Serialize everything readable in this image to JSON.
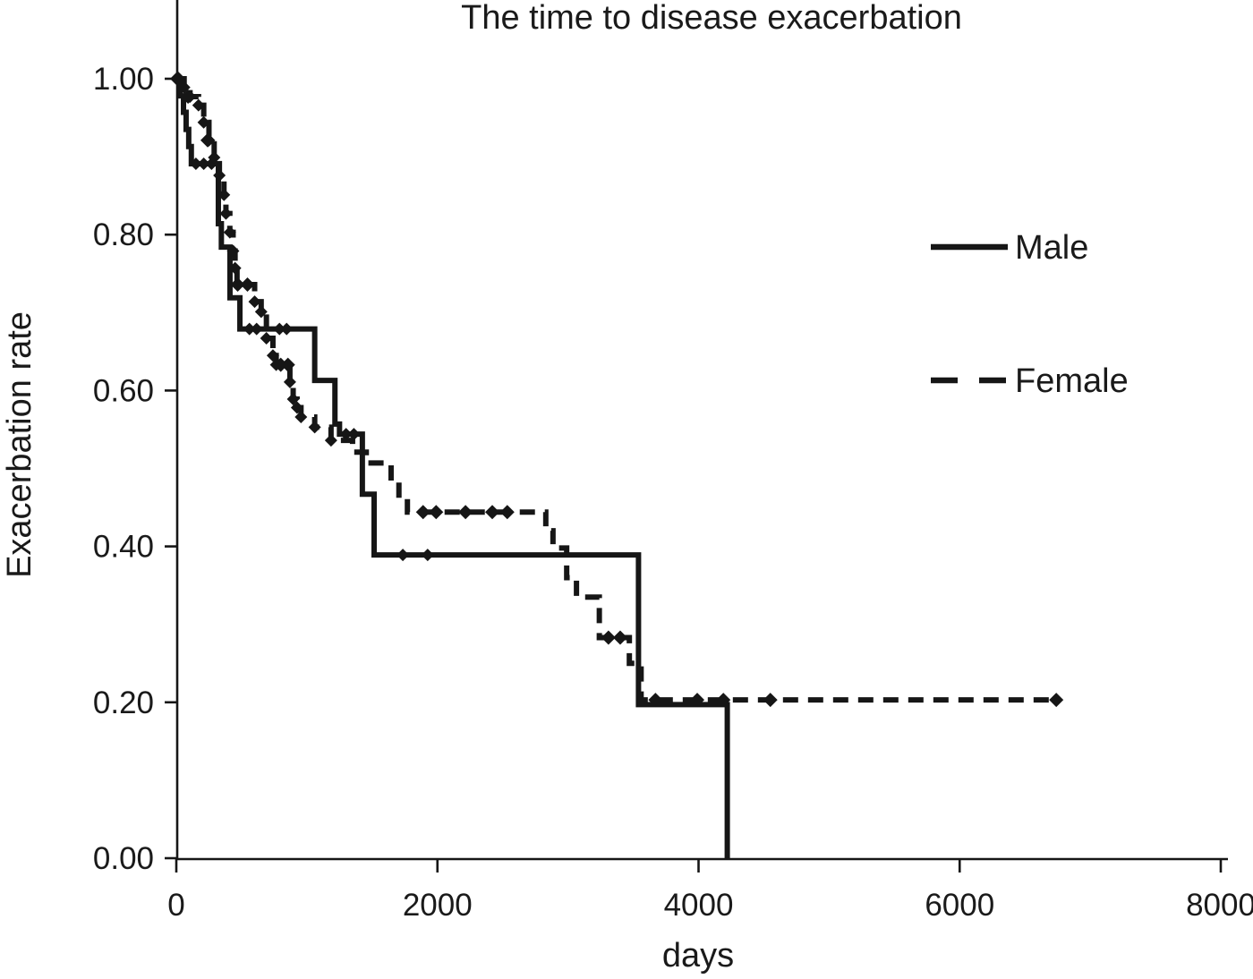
{
  "chart_data": {
    "type": "line",
    "subtype": "kaplan-meier-step",
    "title": "The time to disease exacerbation",
    "xlabel": "days",
    "ylabel": "Exacerbation rate",
    "xlim": [
      0,
      8000
    ],
    "ylim": [
      0.0,
      1.0
    ],
    "x_ticks": [
      {
        "v": 0,
        "label": "0"
      },
      {
        "v": 2000,
        "label": "2000"
      },
      {
        "v": 4000,
        "label": "4000"
      },
      {
        "v": 6000,
        "label": "6000"
      },
      {
        "v": 8000,
        "label": "8000"
      }
    ],
    "y_ticks": [
      {
        "v": 1.0,
        "label": "1.00"
      },
      {
        "v": 0.8,
        "label": "0.80"
      },
      {
        "v": 0.6,
        "label": "0.60"
      },
      {
        "v": 0.4,
        "label": "0.40"
      },
      {
        "v": 0.2,
        "label": "0.20"
      },
      {
        "v": 0.0,
        "label": "0.00"
      }
    ],
    "grid": false,
    "line_color": "#161616",
    "legend": {
      "position": "upper-right",
      "entries": [
        {
          "label": "Male",
          "line": "solid"
        },
        {
          "label": "Female",
          "line": "dashed"
        }
      ]
    },
    "series": [
      {
        "name": "Male",
        "line": "solid",
        "points": [
          [
            0,
            1.0
          ],
          [
            30,
            0.978
          ],
          [
            55,
            0.957
          ],
          [
            75,
            0.935
          ],
          [
            95,
            0.913
          ],
          [
            115,
            0.891
          ],
          [
            322,
            0.814
          ],
          [
            345,
            0.784
          ],
          [
            411,
            0.719
          ],
          [
            487,
            0.679
          ],
          [
            1060,
            0.613
          ],
          [
            1215,
            0.557
          ],
          [
            1250,
            0.544
          ],
          [
            1425,
            0.467
          ],
          [
            1515,
            0.389
          ],
          [
            3540,
            0.197
          ],
          [
            4220,
            0.0
          ]
        ],
        "censor_marks": [
          [
            150,
            0.891
          ],
          [
            210,
            0.891
          ],
          [
            270,
            0.891
          ],
          [
            560,
            0.679
          ],
          [
            615,
            0.679
          ],
          [
            790,
            0.679
          ],
          [
            845,
            0.679
          ],
          [
            1300,
            0.544
          ],
          [
            1360,
            0.544
          ],
          [
            1735,
            0.389
          ],
          [
            1925,
            0.389
          ]
        ]
      },
      {
        "name": "Female",
        "line": "dashed",
        "marker": "diamond",
        "points": [
          [
            0,
            1.0
          ],
          [
            60,
            0.989
          ],
          [
            105,
            0.977
          ],
          [
            170,
            0.966
          ],
          [
            210,
            0.944
          ],
          [
            250,
            0.921
          ],
          [
            290,
            0.899
          ],
          [
            330,
            0.876
          ],
          [
            365,
            0.851
          ],
          [
            380,
            0.827
          ],
          [
            410,
            0.803
          ],
          [
            435,
            0.779
          ],
          [
            450,
            0.757
          ],
          [
            465,
            0.736
          ],
          [
            600,
            0.714
          ],
          [
            650,
            0.701
          ],
          [
            690,
            0.667
          ],
          [
            740,
            0.645
          ],
          [
            765,
            0.633
          ],
          [
            870,
            0.611
          ],
          [
            895,
            0.589
          ],
          [
            925,
            0.578
          ],
          [
            955,
            0.566
          ],
          [
            1060,
            0.553
          ],
          [
            1185,
            0.536
          ],
          [
            1350,
            0.521
          ],
          [
            1455,
            0.507
          ],
          [
            1645,
            0.483
          ],
          [
            1705,
            0.462
          ],
          [
            1770,
            0.444
          ],
          [
            2830,
            0.42
          ],
          [
            2885,
            0.398
          ],
          [
            2990,
            0.36
          ],
          [
            3065,
            0.335
          ],
          [
            3240,
            0.283
          ],
          [
            3470,
            0.25
          ],
          [
            3560,
            0.203
          ],
          [
            6740,
            0.203
          ]
        ],
        "censor_marks": [
          [
            15,
            1.0
          ],
          [
            90,
            0.977
          ],
          [
            240,
            0.921
          ],
          [
            470,
            0.736
          ],
          [
            545,
            0.736
          ],
          [
            800,
            0.633
          ],
          [
            855,
            0.633
          ],
          [
            1890,
            0.444
          ],
          [
            1990,
            0.444
          ],
          [
            2215,
            0.444
          ],
          [
            2420,
            0.444
          ],
          [
            2535,
            0.444
          ],
          [
            3310,
            0.283
          ],
          [
            3400,
            0.283
          ],
          [
            3670,
            0.203
          ],
          [
            3990,
            0.203
          ],
          [
            4190,
            0.203
          ],
          [
            4550,
            0.203
          ],
          [
            6740,
            0.203
          ]
        ]
      }
    ]
  }
}
